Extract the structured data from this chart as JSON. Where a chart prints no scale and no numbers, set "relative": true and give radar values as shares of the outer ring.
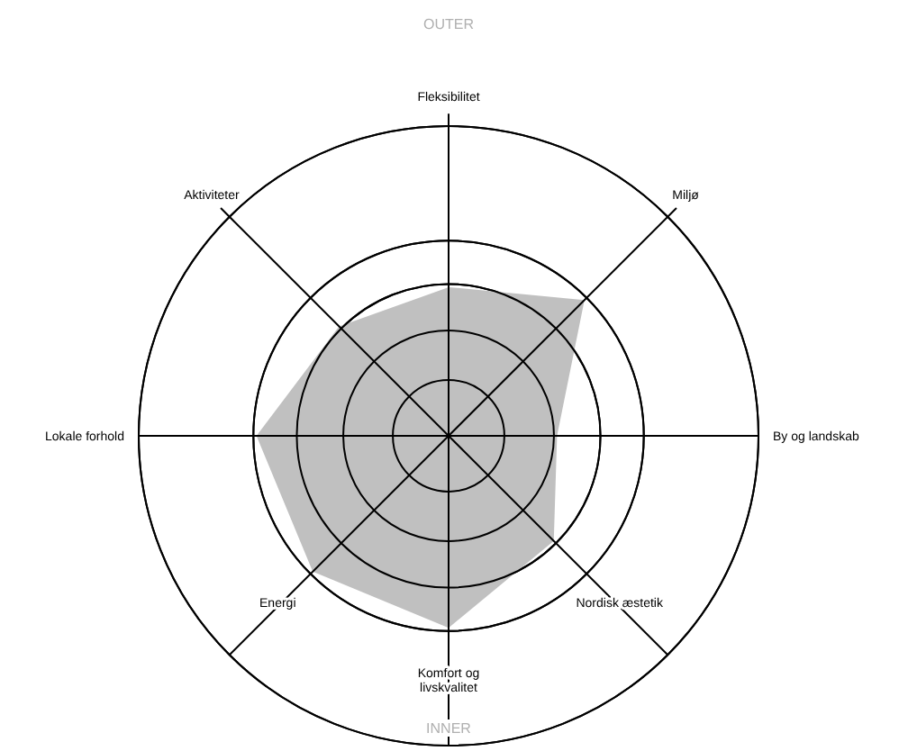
{
  "chart_data": {
    "type": "radar",
    "relative": true,
    "categories": [
      "Fleksibilitet",
      "Miljø",
      "By og landskab",
      "Nordisk æstetik",
      "Komfort og livskvalitet",
      "Energi",
      "Lokale forhold",
      "Aktiviteter"
    ],
    "series": [
      {
        "color": "#c0c0c0",
        "values": [
          0.48,
          0.62,
          0.35,
          0.48,
          0.62,
          0.62,
          0.62,
          0.5
        ]
      }
    ],
    "annotations": [
      "OUTER",
      "INNER"
    ]
  }
}
